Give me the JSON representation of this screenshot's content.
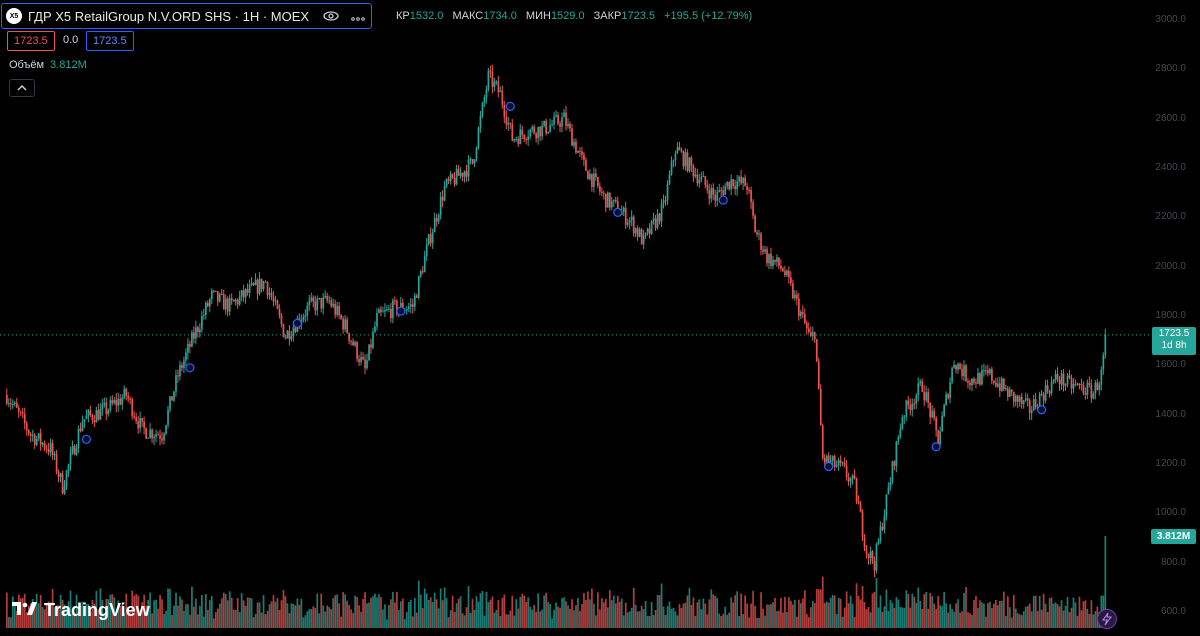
{
  "header": {
    "logo_text": "X5",
    "symbol_title": "ГДР X5 RetailGroup N.V.ORD SHS · 1H · MOEX",
    "eye_icon": "eye-icon",
    "more_icon": "more-dots-icon"
  },
  "ohlc": {
    "open_label": "КР",
    "open_value": "1532.0",
    "high_label": "МАКС",
    "high_value": "1734.0",
    "low_label": "МИН",
    "low_value": "1529.0",
    "close_label": "ЗАКР",
    "close_value": "1723.5",
    "change": "+195.5 (+12.79%)"
  },
  "price_boxes": {
    "bid": "1723.5",
    "spread": "0.0",
    "ask": "1723.5"
  },
  "volume_legend": {
    "label": "Объём",
    "value": "3.812M"
  },
  "collapse_icon": "chevron-up-icon",
  "y_axis_ticks": [
    "3000.0",
    "2800.0",
    "2600.0",
    "2400.0",
    "2200.0",
    "2000.0",
    "1800.0",
    "1600.0",
    "1400.0",
    "1200.0",
    "1000.0",
    "800.0",
    "600.0"
  ],
  "last_price_badge": {
    "price": "1723.5",
    "countdown": "1d 8h"
  },
  "volume_badge": "3.812M",
  "brand": {
    "name": "TradingView"
  },
  "bolt_icon": "lightning-icon",
  "colors": {
    "up": "#26a69a",
    "down": "#ef5350",
    "marker": "#2962ff",
    "price_line": "#26a69a"
  },
  "chart_data": {
    "type": "candlestick",
    "ylim": [
      600,
      3000
    ],
    "last_price": 1723.5,
    "waypoints": [
      [
        0,
        1480
      ],
      [
        12,
        1320
      ],
      [
        22,
        1260
      ],
      [
        28,
        1110
      ],
      [
        38,
        1380
      ],
      [
        50,
        1420
      ],
      [
        60,
        1480
      ],
      [
        68,
        1340
      ],
      [
        78,
        1320
      ],
      [
        86,
        1560
      ],
      [
        94,
        1720
      ],
      [
        103,
        1880
      ],
      [
        112,
        1840
      ],
      [
        122,
        1900
      ],
      [
        130,
        1940
      ],
      [
        140,
        1720
      ],
      [
        152,
        1840
      ],
      [
        162,
        1860
      ],
      [
        170,
        1760
      ],
      [
        180,
        1580
      ],
      [
        186,
        1790
      ],
      [
        194,
        1830
      ],
      [
        204,
        1840
      ],
      [
        212,
        2100
      ],
      [
        220,
        2320
      ],
      [
        234,
        2420
      ],
      [
        242,
        2770
      ],
      [
        248,
        2700
      ],
      [
        254,
        2520
      ],
      [
        262,
        2550
      ],
      [
        270,
        2560
      ],
      [
        280,
        2600
      ],
      [
        290,
        2410
      ],
      [
        300,
        2280
      ],
      [
        306,
        2240
      ],
      [
        314,
        2180
      ],
      [
        320,
        2100
      ],
      [
        330,
        2240
      ],
      [
        336,
        2480
      ],
      [
        346,
        2380
      ],
      [
        356,
        2280
      ],
      [
        364,
        2350
      ],
      [
        372,
        2330
      ],
      [
        376,
        2150
      ],
      [
        382,
        2040
      ],
      [
        390,
        1990
      ],
      [
        398,
        1830
      ],
      [
        404,
        1700
      ],
      [
        406,
        1740
      ],
      [
        410,
        1220
      ],
      [
        420,
        1180
      ],
      [
        426,
        1110
      ],
      [
        432,
        850
      ],
      [
        436,
        800
      ],
      [
        442,
        1050
      ],
      [
        450,
        1400
      ],
      [
        460,
        1520
      ],
      [
        468,
        1300
      ],
      [
        476,
        1620
      ],
      [
        484,
        1540
      ],
      [
        494,
        1560
      ],
      [
        504,
        1480
      ],
      [
        514,
        1420
      ],
      [
        520,
        1480
      ],
      [
        528,
        1550
      ],
      [
        534,
        1520
      ],
      [
        540,
        1510
      ],
      [
        546,
        1490
      ],
      [
        550,
        1560
      ],
      [
        552,
        1700
      ]
    ],
    "markers": [
      [
        40,
        1300
      ],
      [
        92,
        1590
      ],
      [
        146,
        1770
      ],
      [
        198,
        1820
      ],
      [
        253,
        2650
      ],
      [
        307,
        2220
      ],
      [
        360,
        2270
      ],
      [
        413,
        1190
      ],
      [
        467,
        1270
      ],
      [
        520,
        1420
      ]
    ]
  }
}
